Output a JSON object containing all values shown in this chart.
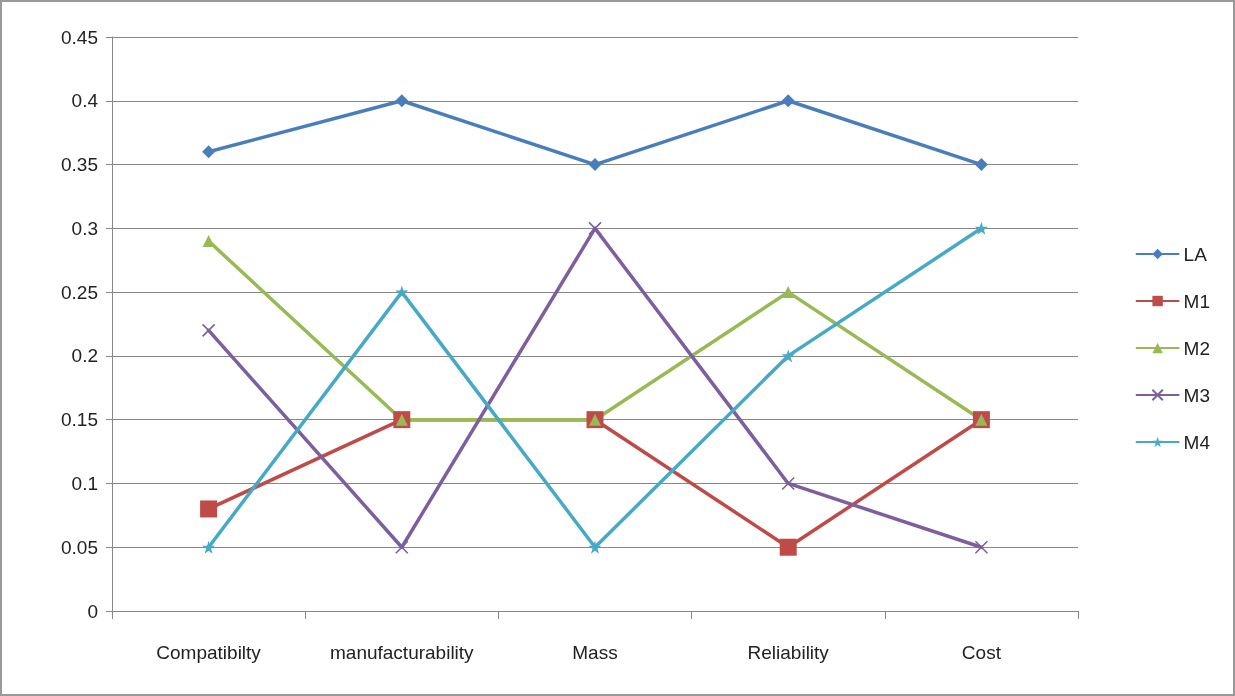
{
  "chart_data": {
    "type": "line",
    "categories": [
      "Compatibilty",
      "manufacturability",
      "Mass",
      "Reliability",
      "Cost"
    ],
    "series": [
      {
        "name": "LA",
        "color": "#4a7ebb",
        "marker": "diamond",
        "values": [
          0.36,
          0.4,
          0.35,
          0.4,
          0.35
        ]
      },
      {
        "name": "M1",
        "color": "#be4b48",
        "marker": "square",
        "values": [
          0.08,
          0.15,
          0.15,
          0.05,
          0.15
        ]
      },
      {
        "name": "M2",
        "color": "#98b954",
        "marker": "triangle",
        "values": [
          0.29,
          0.15,
          0.15,
          0.25,
          0.15
        ]
      },
      {
        "name": "M3",
        "color": "#7d5fa0",
        "marker": "cross",
        "values": [
          0.22,
          0.05,
          0.3,
          0.1,
          0.05
        ]
      },
      {
        "name": "M4",
        "color": "#46aac5",
        "marker": "star",
        "values": [
          0.05,
          0.25,
          0.05,
          0.2,
          0.3
        ]
      }
    ],
    "ylim": [
      0,
      0.45
    ],
    "yticks": [
      0,
      0.05,
      0.1,
      0.15,
      0.2,
      0.25,
      0.3,
      0.35,
      0.4,
      0.45
    ],
    "grid": "y",
    "legend": "right",
    "line_style": "solid"
  }
}
